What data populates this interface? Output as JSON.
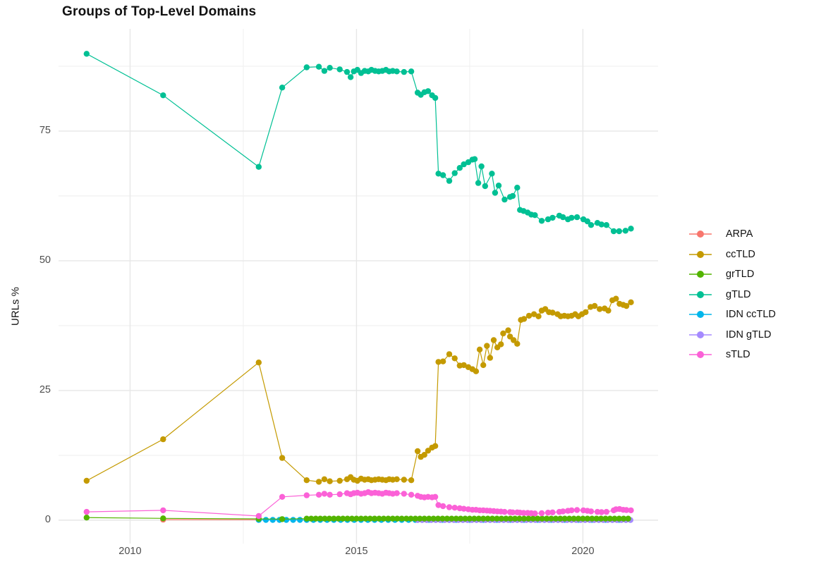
{
  "title": "Groups of Top-Level Domains",
  "axes": {
    "y_title": "URLs %",
    "tick_color": "#4d4d4d",
    "grid_major_color": "#e7e7e7",
    "grid_minor_color": "#f2f2f2"
  },
  "legend": {
    "items": [
      {
        "label": "ARPA",
        "color": "#F8766D"
      },
      {
        "label": "ccTLD",
        "color": "#C49A00"
      },
      {
        "label": "grTLD",
        "color": "#53B400"
      },
      {
        "label": "gTLD",
        "color": "#00C094"
      },
      {
        "label": "IDN ccTLD",
        "color": "#00B6EB"
      },
      {
        "label": "IDN gTLD",
        "color": "#A58AFF"
      },
      {
        "label": "sTLD",
        "color": "#FB61D7"
      }
    ]
  },
  "chart_data": {
    "type": "scatter",
    "title": "Groups of Top-Level Domains",
    "xlabel": "",
    "ylabel": "URLs %",
    "legend_position": "right",
    "grid": true,
    "x_axis": {
      "min": 2008.42,
      "max": 2021.66,
      "major_ticks": [
        2010,
        2015,
        2020
      ],
      "tick_labels": [
        "2010",
        "2015",
        "2020"
      ],
      "minor_ticks": [
        2012.5,
        2017.5
      ]
    },
    "y_axis": {
      "min": -4.5,
      "max": 94.7,
      "major_ticks": [
        0,
        25,
        50,
        75
      ],
      "tick_labels": [
        "0",
        "25",
        "50",
        "75"
      ],
      "minor_ticks": [
        12.5,
        37.5,
        62.5,
        87.5
      ]
    },
    "series": [
      {
        "name": "ARPA",
        "color": "#F8766D",
        "points": [
          [
            2010.73,
            0.1
          ],
          [
            2012.84,
            0.08
          ]
        ]
      },
      {
        "name": "IDN ccTLD",
        "color": "#00B6EB",
        "points": [
          [
            2012.84,
            0.05
          ]
        ],
        "flat": {
          "x_start": 2013.0,
          "x_end": 2021.06,
          "x_step": 0.15,
          "y": 0.05
        }
      },
      {
        "name": "IDN gTLD",
        "color": "#A58AFF",
        "flat": {
          "x_start": 2016.35,
          "x_end": 2021.06,
          "x_step": 0.1,
          "y": 0.02
        }
      },
      {
        "name": "grTLD",
        "color": "#53B400",
        "points": [
          [
            2009.04,
            0.5
          ],
          [
            2010.73,
            0.35
          ],
          [
            2012.84,
            0.25
          ],
          [
            2013.36,
            0.2
          ]
        ],
        "flat": {
          "x_start": 2013.9,
          "x_end": 2021.06,
          "x_step": 0.1,
          "y": 0.3
        }
      },
      {
        "name": "ccTLD",
        "color": "#C49A00",
        "points": [
          [
            2009.04,
            7.6
          ],
          [
            2010.73,
            15.6
          ],
          [
            2012.84,
            30.4
          ],
          [
            2013.36,
            12.0
          ],
          [
            2013.9,
            7.7
          ],
          [
            2014.17,
            7.4
          ],
          [
            2014.29,
            7.9
          ],
          [
            2014.41,
            7.5
          ],
          [
            2014.63,
            7.6
          ],
          [
            2014.79,
            7.9
          ],
          [
            2014.87,
            8.3
          ],
          [
            2014.94,
            7.8
          ],
          [
            2015.02,
            7.6
          ],
          [
            2015.1,
            8.0
          ],
          [
            2015.18,
            7.8
          ],
          [
            2015.26,
            7.9
          ],
          [
            2015.33,
            7.7
          ],
          [
            2015.41,
            7.8
          ],
          [
            2015.49,
            7.9
          ],
          [
            2015.57,
            7.8
          ],
          [
            2015.65,
            7.7
          ],
          [
            2015.72,
            7.9
          ],
          [
            2015.8,
            7.8
          ],
          [
            2015.89,
            7.9
          ],
          [
            2016.05,
            7.8
          ],
          [
            2016.21,
            7.7
          ],
          [
            2016.35,
            13.3
          ],
          [
            2016.42,
            12.2
          ],
          [
            2016.5,
            12.6
          ],
          [
            2016.58,
            13.4
          ],
          [
            2016.67,
            14.0
          ],
          [
            2016.74,
            14.3
          ],
          [
            2016.81,
            30.5
          ],
          [
            2016.91,
            30.6
          ],
          [
            2017.05,
            32.0
          ],
          [
            2017.17,
            31.2
          ],
          [
            2017.28,
            29.8
          ],
          [
            2017.37,
            29.9
          ],
          [
            2017.47,
            29.5
          ],
          [
            2017.56,
            29.1
          ],
          [
            2017.64,
            28.7
          ],
          [
            2017.72,
            32.9
          ],
          [
            2017.8,
            29.9
          ],
          [
            2017.88,
            33.6
          ],
          [
            2017.95,
            31.3
          ],
          [
            2018.03,
            34.7
          ],
          [
            2018.11,
            33.3
          ],
          [
            2018.19,
            33.9
          ],
          [
            2018.24,
            36.0
          ],
          [
            2018.35,
            36.6
          ],
          [
            2018.39,
            35.4
          ],
          [
            2018.47,
            34.7
          ],
          [
            2018.55,
            34.0
          ],
          [
            2018.63,
            38.6
          ],
          [
            2018.7,
            38.8
          ],
          [
            2018.81,
            39.4
          ],
          [
            2018.92,
            39.7
          ],
          [
            2019.02,
            39.3
          ],
          [
            2019.09,
            40.4
          ],
          [
            2019.17,
            40.7
          ],
          [
            2019.25,
            40.1
          ],
          [
            2019.33,
            40.0
          ],
          [
            2019.44,
            39.7
          ],
          [
            2019.51,
            39.3
          ],
          [
            2019.59,
            39.4
          ],
          [
            2019.67,
            39.3
          ],
          [
            2019.75,
            39.4
          ],
          [
            2019.83,
            39.7
          ],
          [
            2019.9,
            39.3
          ],
          [
            2019.98,
            39.7
          ],
          [
            2020.06,
            40.1
          ],
          [
            2020.17,
            41.1
          ],
          [
            2020.26,
            41.3
          ],
          [
            2020.37,
            40.7
          ],
          [
            2020.48,
            40.8
          ],
          [
            2020.56,
            40.4
          ],
          [
            2020.65,
            42.4
          ],
          [
            2020.73,
            42.7
          ],
          [
            2020.81,
            41.7
          ],
          [
            2020.89,
            41.5
          ],
          [
            2020.96,
            41.3
          ],
          [
            2021.06,
            42.0
          ]
        ]
      },
      {
        "name": "gTLD",
        "color": "#00C094",
        "points": [
          [
            2009.04,
            89.9
          ],
          [
            2010.73,
            81.9
          ],
          [
            2012.84,
            68.1
          ],
          [
            2013.36,
            83.4
          ],
          [
            2013.9,
            87.3
          ],
          [
            2014.17,
            87.4
          ],
          [
            2014.29,
            86.6
          ],
          [
            2014.41,
            87.2
          ],
          [
            2014.63,
            86.9
          ],
          [
            2014.79,
            86.4
          ],
          [
            2014.87,
            85.4
          ],
          [
            2014.94,
            86.5
          ],
          [
            2015.02,
            86.8
          ],
          [
            2015.1,
            86.2
          ],
          [
            2015.18,
            86.6
          ],
          [
            2015.26,
            86.5
          ],
          [
            2015.33,
            86.8
          ],
          [
            2015.41,
            86.6
          ],
          [
            2015.49,
            86.5
          ],
          [
            2015.57,
            86.6
          ],
          [
            2015.65,
            86.8
          ],
          [
            2015.72,
            86.5
          ],
          [
            2015.8,
            86.6
          ],
          [
            2015.89,
            86.5
          ],
          [
            2016.05,
            86.4
          ],
          [
            2016.21,
            86.5
          ],
          [
            2016.35,
            82.4
          ],
          [
            2016.42,
            82.0
          ],
          [
            2016.5,
            82.5
          ],
          [
            2016.58,
            82.7
          ],
          [
            2016.67,
            81.9
          ],
          [
            2016.74,
            81.4
          ],
          [
            2016.81,
            66.8
          ],
          [
            2016.91,
            66.5
          ],
          [
            2017.05,
            65.4
          ],
          [
            2017.17,
            66.9
          ],
          [
            2017.28,
            67.9
          ],
          [
            2017.37,
            68.6
          ],
          [
            2017.47,
            69.0
          ],
          [
            2017.56,
            69.5
          ],
          [
            2017.61,
            69.6
          ],
          [
            2017.69,
            65.0
          ],
          [
            2017.76,
            68.2
          ],
          [
            2017.84,
            64.4
          ],
          [
            2017.99,
            66.8
          ],
          [
            2018.06,
            63.1
          ],
          [
            2018.14,
            64.5
          ],
          [
            2018.27,
            61.8
          ],
          [
            2018.39,
            62.3
          ],
          [
            2018.45,
            62.5
          ],
          [
            2018.55,
            64.1
          ],
          [
            2018.61,
            59.8
          ],
          [
            2018.69,
            59.6
          ],
          [
            2018.78,
            59.3
          ],
          [
            2018.86,
            58.9
          ],
          [
            2018.94,
            58.8
          ],
          [
            2019.09,
            57.7
          ],
          [
            2019.23,
            58.0
          ],
          [
            2019.33,
            58.3
          ],
          [
            2019.48,
            58.7
          ],
          [
            2019.56,
            58.4
          ],
          [
            2019.67,
            58.0
          ],
          [
            2019.75,
            58.3
          ],
          [
            2019.87,
            58.4
          ],
          [
            2020.01,
            58.0
          ],
          [
            2020.1,
            57.6
          ],
          [
            2020.18,
            56.9
          ],
          [
            2020.32,
            57.3
          ],
          [
            2020.41,
            57.0
          ],
          [
            2020.52,
            56.9
          ],
          [
            2020.68,
            55.7
          ],
          [
            2020.8,
            55.7
          ],
          [
            2020.94,
            55.8
          ],
          [
            2021.06,
            56.2
          ]
        ]
      },
      {
        "name": "sTLD",
        "color": "#FB61D7",
        "points": [
          [
            2009.04,
            1.6
          ],
          [
            2010.73,
            1.9
          ],
          [
            2012.84,
            0.8
          ],
          [
            2013.36,
            4.5
          ],
          [
            2013.9,
            4.8
          ],
          [
            2014.17,
            4.9
          ],
          [
            2014.29,
            5.1
          ],
          [
            2014.41,
            4.9
          ],
          [
            2014.63,
            5.0
          ],
          [
            2014.79,
            5.2
          ],
          [
            2014.87,
            5.0
          ],
          [
            2014.94,
            5.2
          ],
          [
            2015.02,
            5.3
          ],
          [
            2015.1,
            5.1
          ],
          [
            2015.18,
            5.2
          ],
          [
            2015.26,
            5.4
          ],
          [
            2015.33,
            5.2
          ],
          [
            2015.41,
            5.3
          ],
          [
            2015.49,
            5.2
          ],
          [
            2015.57,
            5.1
          ],
          [
            2015.65,
            5.3
          ],
          [
            2015.72,
            5.2
          ],
          [
            2015.8,
            5.1
          ],
          [
            2015.89,
            5.2
          ],
          [
            2016.05,
            5.1
          ],
          [
            2016.21,
            4.9
          ],
          [
            2016.35,
            4.7
          ],
          [
            2016.42,
            4.5
          ],
          [
            2016.5,
            4.4
          ],
          [
            2016.58,
            4.5
          ],
          [
            2016.67,
            4.4
          ],
          [
            2016.74,
            4.5
          ],
          [
            2016.81,
            2.9
          ],
          [
            2016.91,
            2.7
          ],
          [
            2017.05,
            2.5
          ],
          [
            2017.17,
            2.4
          ],
          [
            2017.28,
            2.3
          ],
          [
            2017.37,
            2.2
          ],
          [
            2017.47,
            2.1
          ],
          [
            2017.56,
            2.0
          ],
          [
            2017.64,
            2.0
          ],
          [
            2017.72,
            1.9
          ],
          [
            2017.8,
            1.9
          ],
          [
            2017.88,
            1.85
          ],
          [
            2017.95,
            1.8
          ],
          [
            2018.03,
            1.75
          ],
          [
            2018.11,
            1.7
          ],
          [
            2018.19,
            1.65
          ],
          [
            2018.27,
            1.6
          ],
          [
            2018.39,
            1.55
          ],
          [
            2018.45,
            1.5
          ],
          [
            2018.55,
            1.5
          ],
          [
            2018.61,
            1.45
          ],
          [
            2018.69,
            1.4
          ],
          [
            2018.78,
            1.4
          ],
          [
            2018.86,
            1.35
          ],
          [
            2018.94,
            1.3
          ],
          [
            2019.09,
            1.35
          ],
          [
            2019.23,
            1.45
          ],
          [
            2019.33,
            1.5
          ],
          [
            2019.48,
            1.6
          ],
          [
            2019.56,
            1.7
          ],
          [
            2019.67,
            1.8
          ],
          [
            2019.75,
            1.9
          ],
          [
            2019.87,
            1.95
          ],
          [
            2020.01,
            1.9
          ],
          [
            2020.1,
            1.8
          ],
          [
            2020.18,
            1.7
          ],
          [
            2020.32,
            1.6
          ],
          [
            2020.41,
            1.55
          ],
          [
            2020.52,
            1.6
          ],
          [
            2020.68,
            1.9
          ],
          [
            2020.73,
            2.1
          ],
          [
            2020.81,
            2.15
          ],
          [
            2020.89,
            2.0
          ],
          [
            2020.96,
            1.95
          ],
          [
            2021.06,
            1.9
          ]
        ]
      }
    ]
  }
}
